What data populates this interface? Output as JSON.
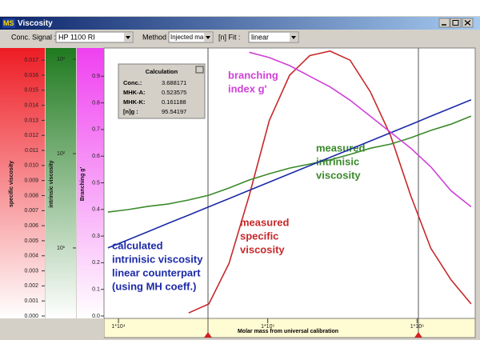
{
  "window": {
    "logo": "MS",
    "title": "Viscosity"
  },
  "toolbar": {
    "signal_label": "Conc. Signal :",
    "signal_value": "HP 1100 RI",
    "method_label": "Method :",
    "method_value": "Injected ma",
    "fit_label": "[n] Fit :",
    "fit_value": "linear"
  },
  "calculation": {
    "title": "Calculation",
    "rows": [
      [
        "Conc.:",
        "3.688171"
      ],
      [
        "MHK-A:",
        "0.523575"
      ],
      [
        "MHK-K:",
        "0.161188"
      ],
      [
        "[n]g :",
        "95.54197"
      ]
    ]
  },
  "chart_data": {
    "type": "line",
    "xlabel": "Molar mass from universal calibration",
    "xlog": true,
    "xlim": [
      8000,
      2450000
    ],
    "xticks": [
      {
        "value": 10000,
        "label": "1*10⁴"
      },
      {
        "value": 100000,
        "label": "1*10⁵"
      },
      {
        "value": 1000000,
        "label": "1*10⁶"
      }
    ],
    "axes": [
      {
        "label": "specific viscosity",
        "color": "#e8262a",
        "lim": [
          0,
          0.0177
        ],
        "ticks": [
          {
            "value": 0,
            "label": "0.000"
          },
          0.001,
          0.002,
          0.003,
          0.004,
          0.005,
          0.006,
          0.007,
          0.008,
          0.009,
          {
            "value": 0.01,
            "label": "0.010"
          },
          0.011,
          0.012,
          0.013,
          0.014,
          0.015,
          0.016,
          0.017
        ]
      },
      {
        "label": "intrinsic viscosity",
        "color": "#2f8a2f",
        "log": true,
        "lim": [
          1.9,
          1265
        ],
        "ticks": [
          {
            "value": 10,
            "label": "10¹"
          },
          {
            "value": 100,
            "label": "10²"
          },
          {
            "value": 1000,
            "label": "10³"
          }
        ]
      },
      {
        "label": "Branching g'",
        "color": "#e040e0",
        "lim": [
          0,
          1.0
        ],
        "ticks": [
          {
            "value": 0,
            "label": "0.0"
          },
          0.1,
          0.2,
          0.3,
          0.4,
          0.5,
          0.6,
          0.7,
          0.8,
          0.9
        ]
      }
    ],
    "x": [
      8500,
      11600,
      15800,
      21600,
      29500,
      40300,
      55000,
      75100,
      102500,
      140000,
      191000,
      261000,
      356000,
      486000,
      663000,
      906000,
      1236000,
      1687000,
      2301000
    ],
    "series": [
      {
        "label": [
          "measured",
          "specific",
          "viscosity"
        ],
        "color": "#c8282a",
        "axis": 0,
        "values": [
          null,
          null,
          null,
          null,
          0.0002,
          0.0008,
          0.0035,
          0.008,
          0.013,
          0.016,
          0.0173,
          0.0176,
          0.017,
          0.0149,
          0.012,
          0.008,
          0.0045,
          0.0024,
          0.0008
        ]
      },
      {
        "label": [
          "measured",
          "intrinisic",
          "viscosity"
        ],
        "color": "#3a8a2a",
        "axis": 1,
        "values": [
          24.0,
          25.5,
          27.6,
          29.3,
          32.2,
          36.2,
          43.2,
          52.5,
          61.3,
          70.2,
          77.5,
          85.8,
          98.0,
          114,
          126,
          147,
          176,
          205,
          250
        ]
      },
      {
        "label": [
          "calculated",
          "intrinisic viscosity",
          "linear counterpart",
          "(using MH coeff.)"
        ],
        "color": "#1c2aa8",
        "axis": 1,
        "values": [
          10.0,
          12.2,
          14.9,
          18.3,
          22.3,
          27.3,
          33.4,
          40.8,
          49.9,
          61.0,
          74.6,
          91.2,
          111,
          136,
          166,
          203,
          249,
          304,
          372
        ]
      },
      {
        "label": [
          "branching",
          "index g'"
        ],
        "color": "#d040d8",
        "axis": 2,
        "values": [
          null,
          null,
          null,
          null,
          null,
          null,
          null,
          0.99,
          0.97,
          0.94,
          0.9,
          0.86,
          0.81,
          0.75,
          0.69,
          0.63,
          0.56,
          0.47,
          0.41
        ]
      }
    ]
  }
}
